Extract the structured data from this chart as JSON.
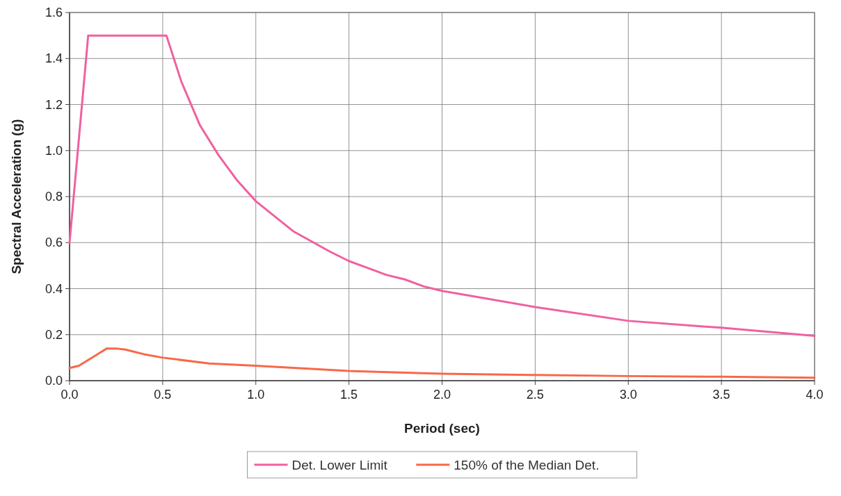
{
  "chart_data": {
    "type": "line",
    "xlabel": "Period (sec)",
    "ylabel": "Spectral Acceleration (g)",
    "xlim": [
      0,
      4
    ],
    "xticks": [
      {
        "value": 0,
        "label": "0.0"
      },
      {
        "value": 0.5,
        "label": "0.5"
      },
      {
        "value": 1,
        "label": "1.0"
      },
      {
        "value": 1.5,
        "label": "1.5"
      },
      {
        "value": 2,
        "label": "2.0"
      },
      {
        "value": 2.5,
        "label": "2.5"
      },
      {
        "value": 3,
        "label": "3.0"
      },
      {
        "value": 3.5,
        "label": "3.5"
      },
      {
        "value": 4,
        "label": "4.0"
      }
    ],
    "ylim": [
      0,
      1.6
    ],
    "yticks": [
      {
        "value": 0,
        "label": "0.0"
      },
      {
        "value": 0.2,
        "label": "0.2"
      },
      {
        "value": 0.4,
        "label": "0.4"
      },
      {
        "value": 0.6,
        "label": "0.6"
      },
      {
        "value": 0.8,
        "label": "0.8"
      },
      {
        "value": 1,
        "label": "1.0"
      },
      {
        "value": 1.2,
        "label": "1.2"
      },
      {
        "value": 1.4,
        "label": "1.4"
      },
      {
        "value": 1.6,
        "label": "1.6"
      }
    ],
    "grid": true,
    "legend": "bottom",
    "marker": "none",
    "line_style": "solid",
    "series": [
      {
        "name": "Det. Lower Limit",
        "color": "#f0609f",
        "x": [
          0,
          0.1,
          0.52,
          0.6,
          0.7,
          0.8,
          0.9,
          1.0,
          1.2,
          1.4,
          1.5,
          1.6,
          1.7,
          1.8,
          1.9,
          2.0,
          2.5,
          3.0,
          3.5,
          4.0
        ],
        "values": [
          0.6,
          1.5,
          1.5,
          1.3,
          1.11,
          0.98,
          0.87,
          0.78,
          0.65,
          0.56,
          0.52,
          0.49,
          0.46,
          0.44,
          0.41,
          0.39,
          0.32,
          0.26,
          0.23,
          0.195
        ]
      },
      {
        "name": "150% of the Median Det.",
        "color": "#f86848",
        "x": [
          0,
          0.05,
          0.1,
          0.15,
          0.2,
          0.25,
          0.3,
          0.4,
          0.5,
          0.75,
          1.0,
          1.5,
          2.0,
          2.5,
          3.0,
          3.5,
          4.0
        ],
        "values": [
          0.055,
          0.065,
          0.09,
          0.115,
          0.14,
          0.14,
          0.135,
          0.115,
          0.1,
          0.075,
          0.065,
          0.042,
          0.03,
          0.025,
          0.02,
          0.017,
          0.013
        ]
      }
    ]
  }
}
